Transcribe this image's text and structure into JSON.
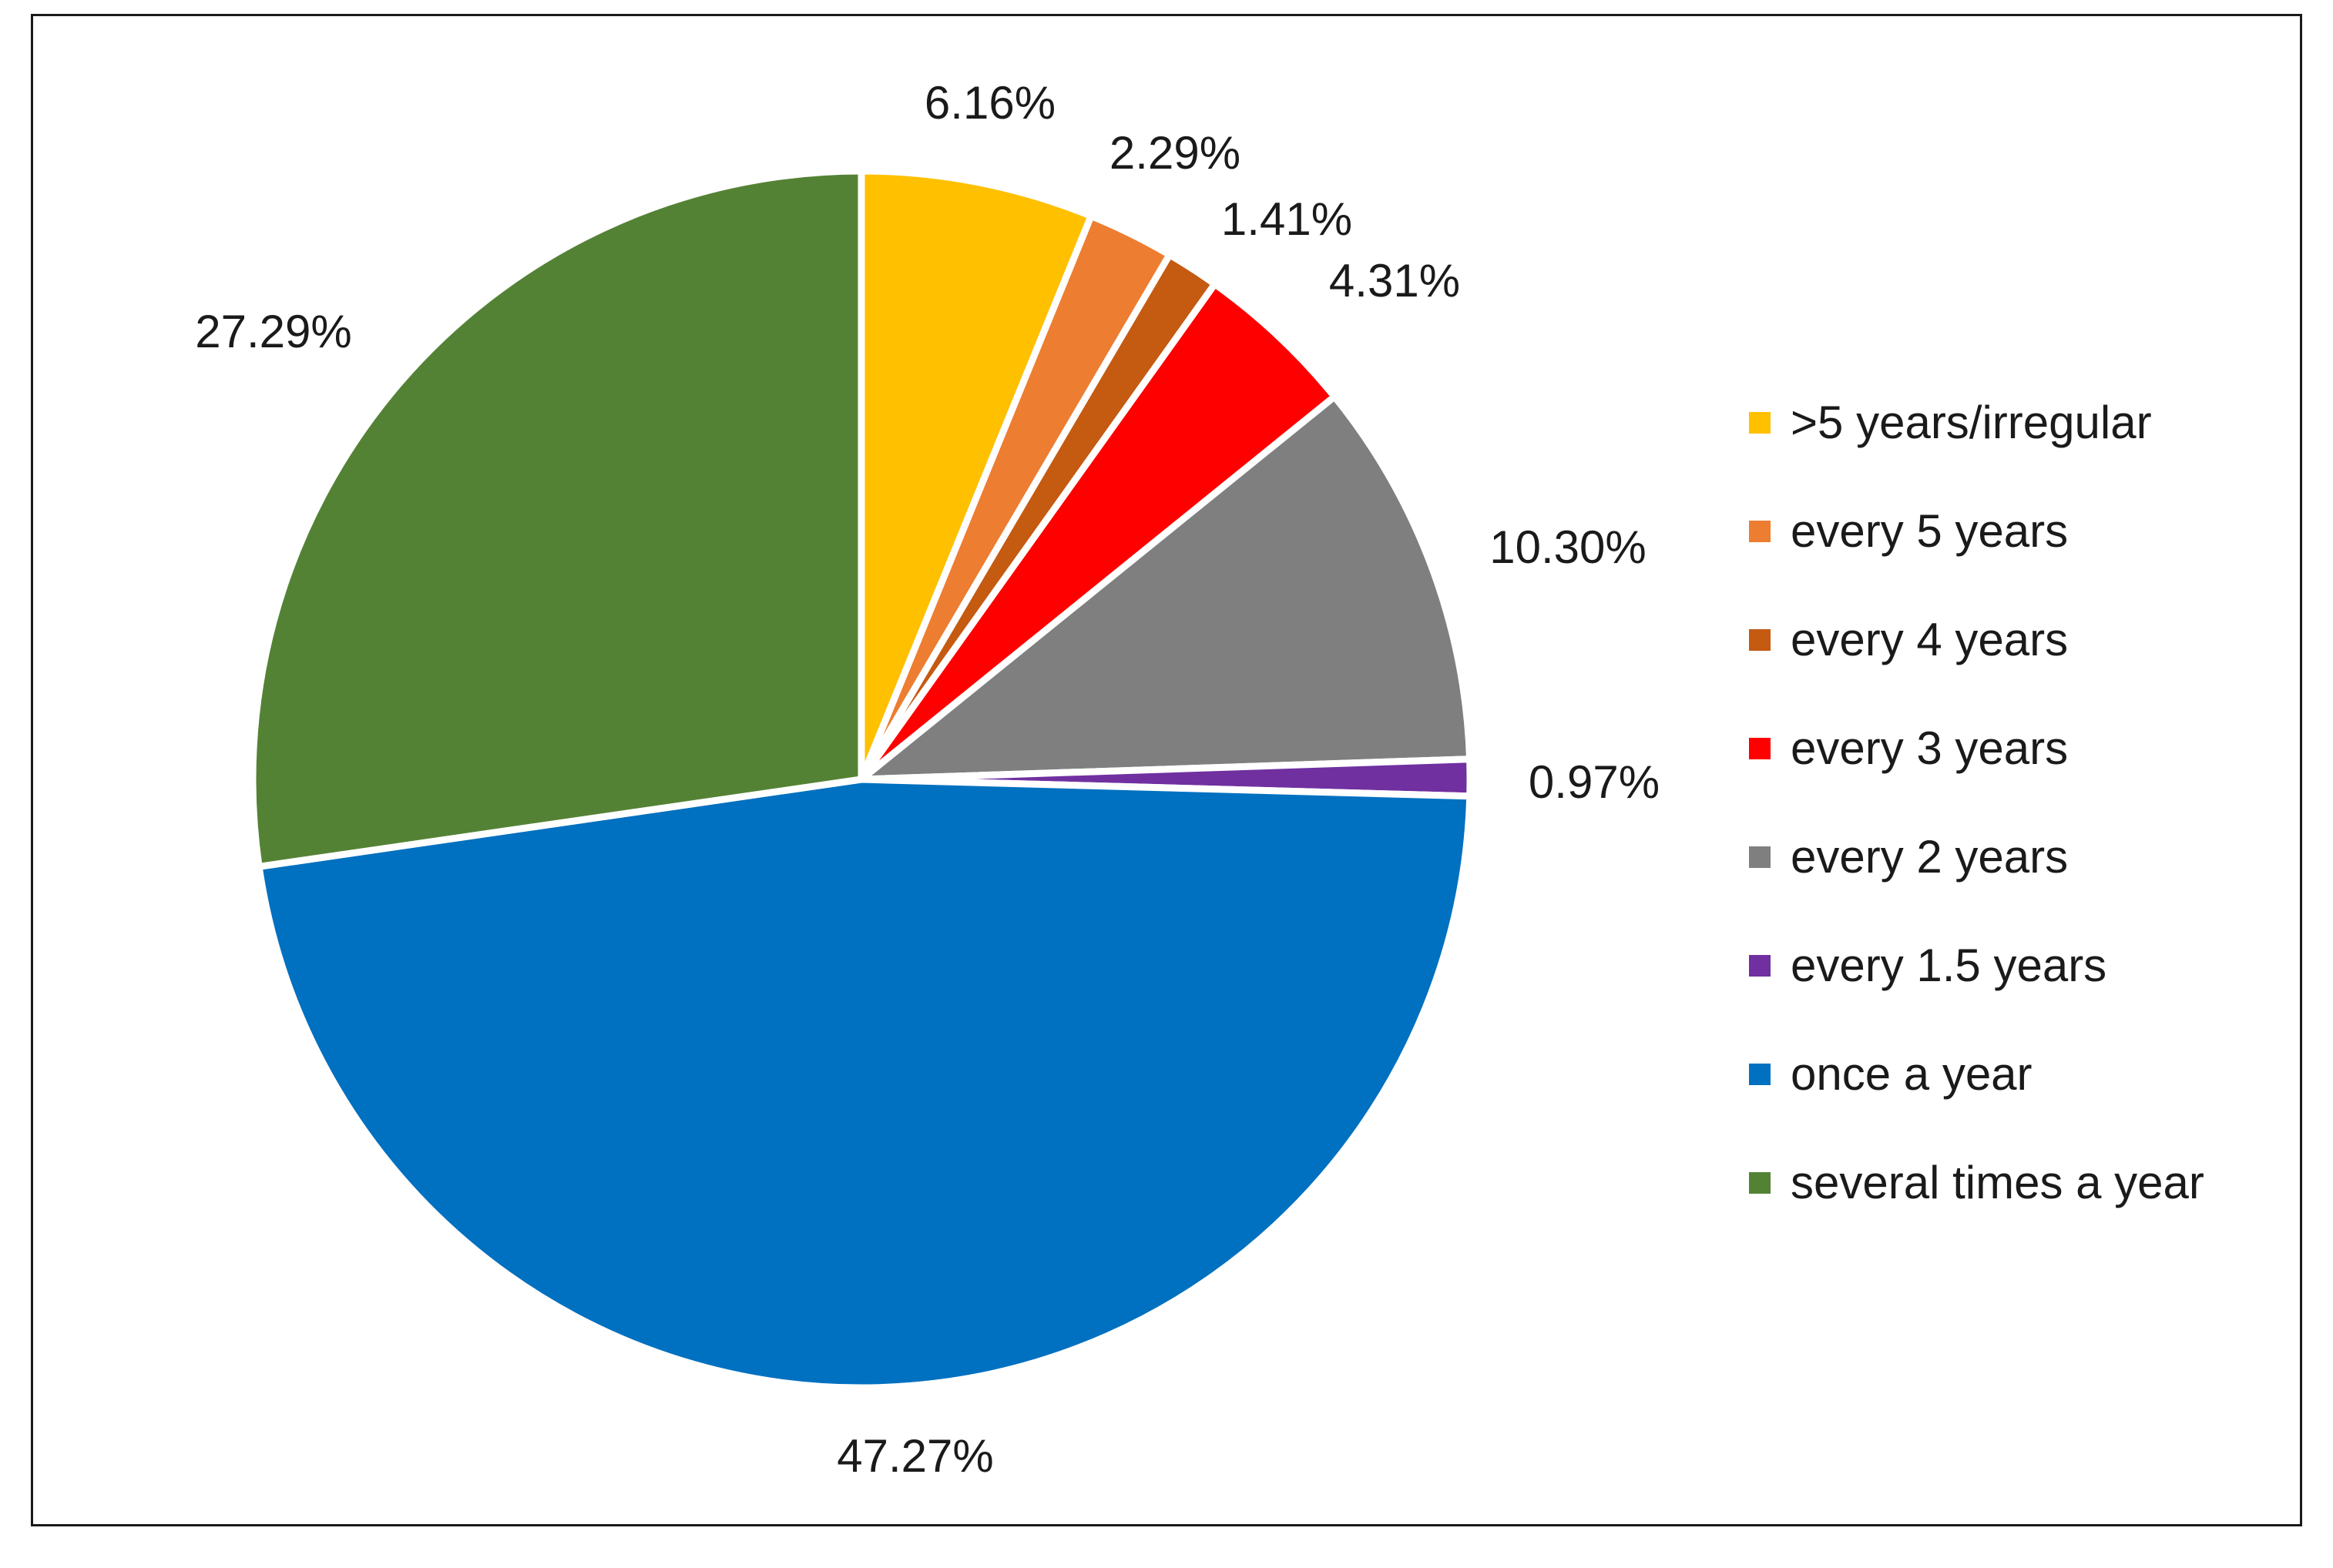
{
  "chart_data": {
    "type": "pie",
    "title": "",
    "slices": [
      {
        "label": ">5 years/irregular",
        "value": 6.16,
        "display": "6.16%",
        "color": "#FFC000"
      },
      {
        "label": "every 5 years",
        "value": 2.29,
        "display": "2.29%",
        "color": "#ED7D31"
      },
      {
        "label": "every 4 years",
        "value": 1.41,
        "display": "1.41%",
        "color": "#C55A11"
      },
      {
        "label": "every 3 years",
        "value": 4.31,
        "display": "4.31%",
        "color": "#FF0000"
      },
      {
        "label": "every 2 years",
        "value": 10.3,
        "display": "10.30%",
        "color": "#7F7F7F"
      },
      {
        "label": "every 1.5 years",
        "value": 0.97,
        "display": "0.97%",
        "color": "#7030A0"
      },
      {
        "label": "once a year",
        "value": 47.27,
        "display": "47.27%",
        "color": "#0070C0"
      },
      {
        "label": "several times a year",
        "value": 27.29,
        "display": "27.29%",
        "color": "#548235"
      }
    ],
    "legend_position": "right"
  }
}
